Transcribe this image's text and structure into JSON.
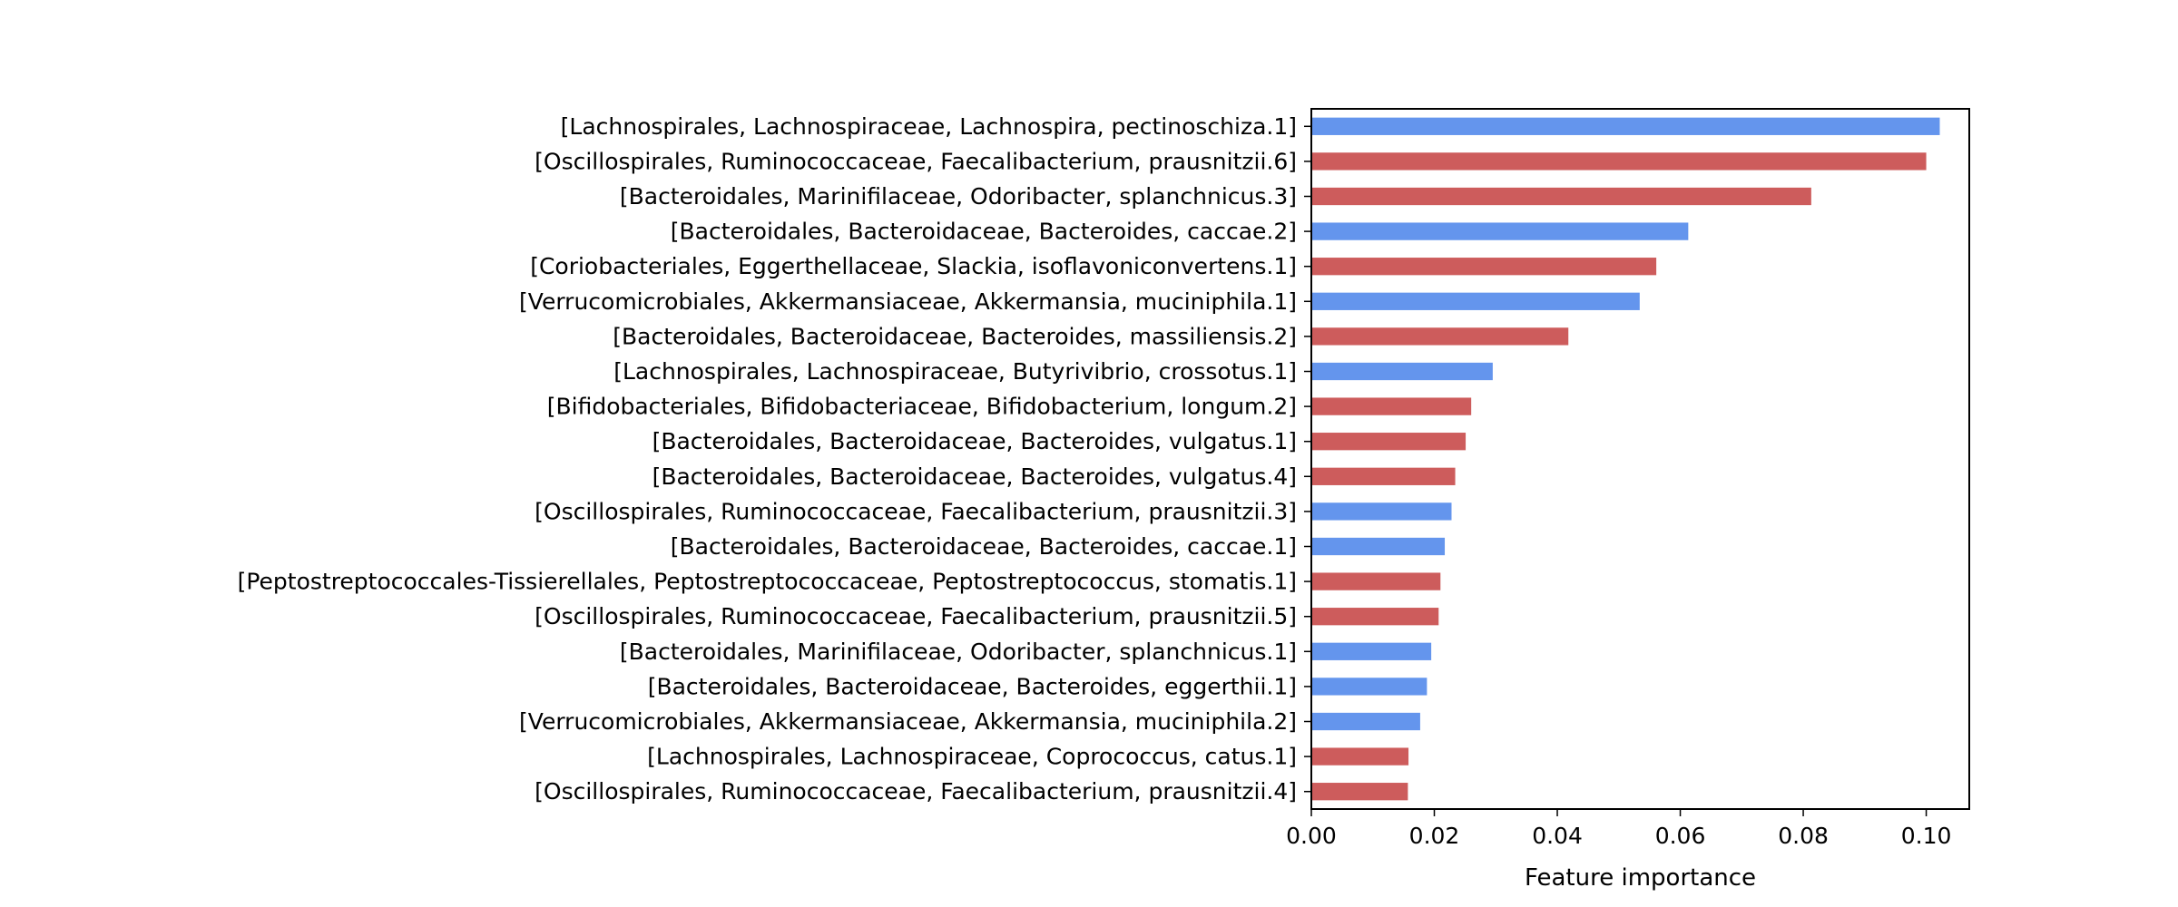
{
  "chart_data": {
    "type": "bar",
    "orientation": "horizontal",
    "title": "",
    "xlabel": "Feature importance",
    "ylabel": "",
    "xlim": [
      0,
      0.107
    ],
    "xticks": [
      0.0,
      0.02,
      0.04,
      0.06,
      0.08,
      0.1
    ],
    "xtick_labels": [
      "0.00",
      "0.02",
      "0.04",
      "0.06",
      "0.08",
      "0.10"
    ],
    "grid": false,
    "legend": "none",
    "colors": {
      "blue": "#6495ed",
      "red": "#cd5c5c"
    },
    "bars": [
      {
        "label": "[Lachnospirales, Lachnospiraceae, Lachnospira, pectinoschiza.1]",
        "value": 0.1022,
        "color": "blue"
      },
      {
        "label": "[Oscillospirales, Ruminococcaceae, Faecalibacterium, prausnitzii.6]",
        "value": 0.1,
        "color": "red"
      },
      {
        "label": "[Bacteroidales, Marinifilaceae, Odoribacter, splanchnicus.3]",
        "value": 0.0813,
        "color": "red"
      },
      {
        "label": "[Bacteroidales, Bacteroidaceae, Bacteroides, caccae.2]",
        "value": 0.0613,
        "color": "blue"
      },
      {
        "label": "[Coriobacteriales, Eggerthellaceae, Slackia, isoflavoniconvertens.1]",
        "value": 0.0561,
        "color": "red"
      },
      {
        "label": "[Verrucomicrobiales, Akkermansiaceae, Akkermansia, muciniphila.1]",
        "value": 0.0534,
        "color": "blue"
      },
      {
        "label": "[Bacteroidales, Bacteroidaceae, Bacteroides, massiliensis.2]",
        "value": 0.0418,
        "color": "red"
      },
      {
        "label": "[Lachnospirales, Lachnospiraceae, Butyrivibrio, crossotus.1]",
        "value": 0.0295,
        "color": "blue"
      },
      {
        "label": "[Bifidobacteriales, Bifidobacteriaceae, Bifidobacterium, longum.2]",
        "value": 0.026,
        "color": "red"
      },
      {
        "label": "[Bacteroidales, Bacteroidaceae, Bacteroides, vulgatus.1]",
        "value": 0.0251,
        "color": "red"
      },
      {
        "label": "[Bacteroidales, Bacteroidaceae, Bacteroides, vulgatus.4]",
        "value": 0.0234,
        "color": "red"
      },
      {
        "label": "[Oscillospirales, Ruminococcaceae, Faecalibacterium, prausnitzii.3]",
        "value": 0.0228,
        "color": "blue"
      },
      {
        "label": "[Bacteroidales, Bacteroidaceae, Bacteroides, caccae.1]",
        "value": 0.0217,
        "color": "blue"
      },
      {
        "label": "[Peptostreptococcales-Tissierellales, Peptostreptococcaceae, Peptostreptococcus, stomatis.1]",
        "value": 0.021,
        "color": "red"
      },
      {
        "label": "[Oscillospirales, Ruminococcaceae, Faecalibacterium, prausnitzii.5]",
        "value": 0.0207,
        "color": "red"
      },
      {
        "label": "[Bacteroidales, Marinifilaceae, Odoribacter, splanchnicus.1]",
        "value": 0.0195,
        "color": "blue"
      },
      {
        "label": "[Bacteroidales, Bacteroidaceae, Bacteroides, eggerthii.1]",
        "value": 0.0188,
        "color": "blue"
      },
      {
        "label": "[Verrucomicrobiales, Akkermansiaceae, Akkermansia, muciniphila.2]",
        "value": 0.0177,
        "color": "blue"
      },
      {
        "label": "[Lachnospirales, Lachnospiraceae, Coprococcus, catus.1]",
        "value": 0.0158,
        "color": "red"
      },
      {
        "label": "[Oscillospirales, Ruminococcaceae, Faecalibacterium, prausnitzii.4]",
        "value": 0.0157,
        "color": "red"
      }
    ]
  }
}
